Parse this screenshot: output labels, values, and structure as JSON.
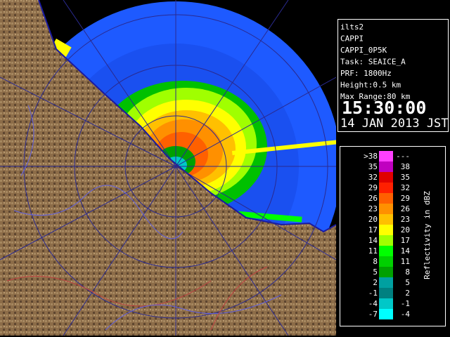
{
  "info": {
    "lines": [
      "ilts2",
      "CAPPI",
      "CAPPI_0P5K",
      "Task: SEAICE_A",
      "PRF: 1800Hz",
      "Height:0.5 km",
      "Max Range:80 km"
    ],
    "time": "15:30:00",
    "date": "14 JAN 2013 JST"
  },
  "legend": {
    "title": "Reflectivity in dBZ",
    "rows": [
      {
        "low": ">38",
        "high": "---",
        "color": "#ff40ff"
      },
      {
        "low": "35",
        "high": "38",
        "color": "#c000c0"
      },
      {
        "low": "32",
        "high": "35",
        "color": "#e00000"
      },
      {
        "low": "29",
        "high": "32",
        "color": "#ff2000"
      },
      {
        "low": "26",
        "high": "29",
        "color": "#ff6000"
      },
      {
        "low": "23",
        "high": "26",
        "color": "#ff9000"
      },
      {
        "low": "20",
        "high": "23",
        "color": "#ffc000"
      },
      {
        "low": "17",
        "high": "20",
        "color": "#ffff00"
      },
      {
        "low": "14",
        "high": "17",
        "color": "#a0ff00"
      },
      {
        "low": "11",
        "high": "14",
        "color": "#00ff00"
      },
      {
        "low": "8",
        "high": "11",
        "color": "#00d000"
      },
      {
        "low": "5",
        "high": "8",
        "color": "#00a000"
      },
      {
        "low": "2",
        "high": "5",
        "color": "#00a0a0"
      },
      {
        "low": "-1",
        "high": "2",
        "color": "#008080"
      },
      {
        "low": "-4",
        "high": "-1",
        "color": "#00c8c8"
      },
      {
        "low": "-7",
        "high": "-4",
        "color": "#00ffff"
      }
    ]
  }
}
